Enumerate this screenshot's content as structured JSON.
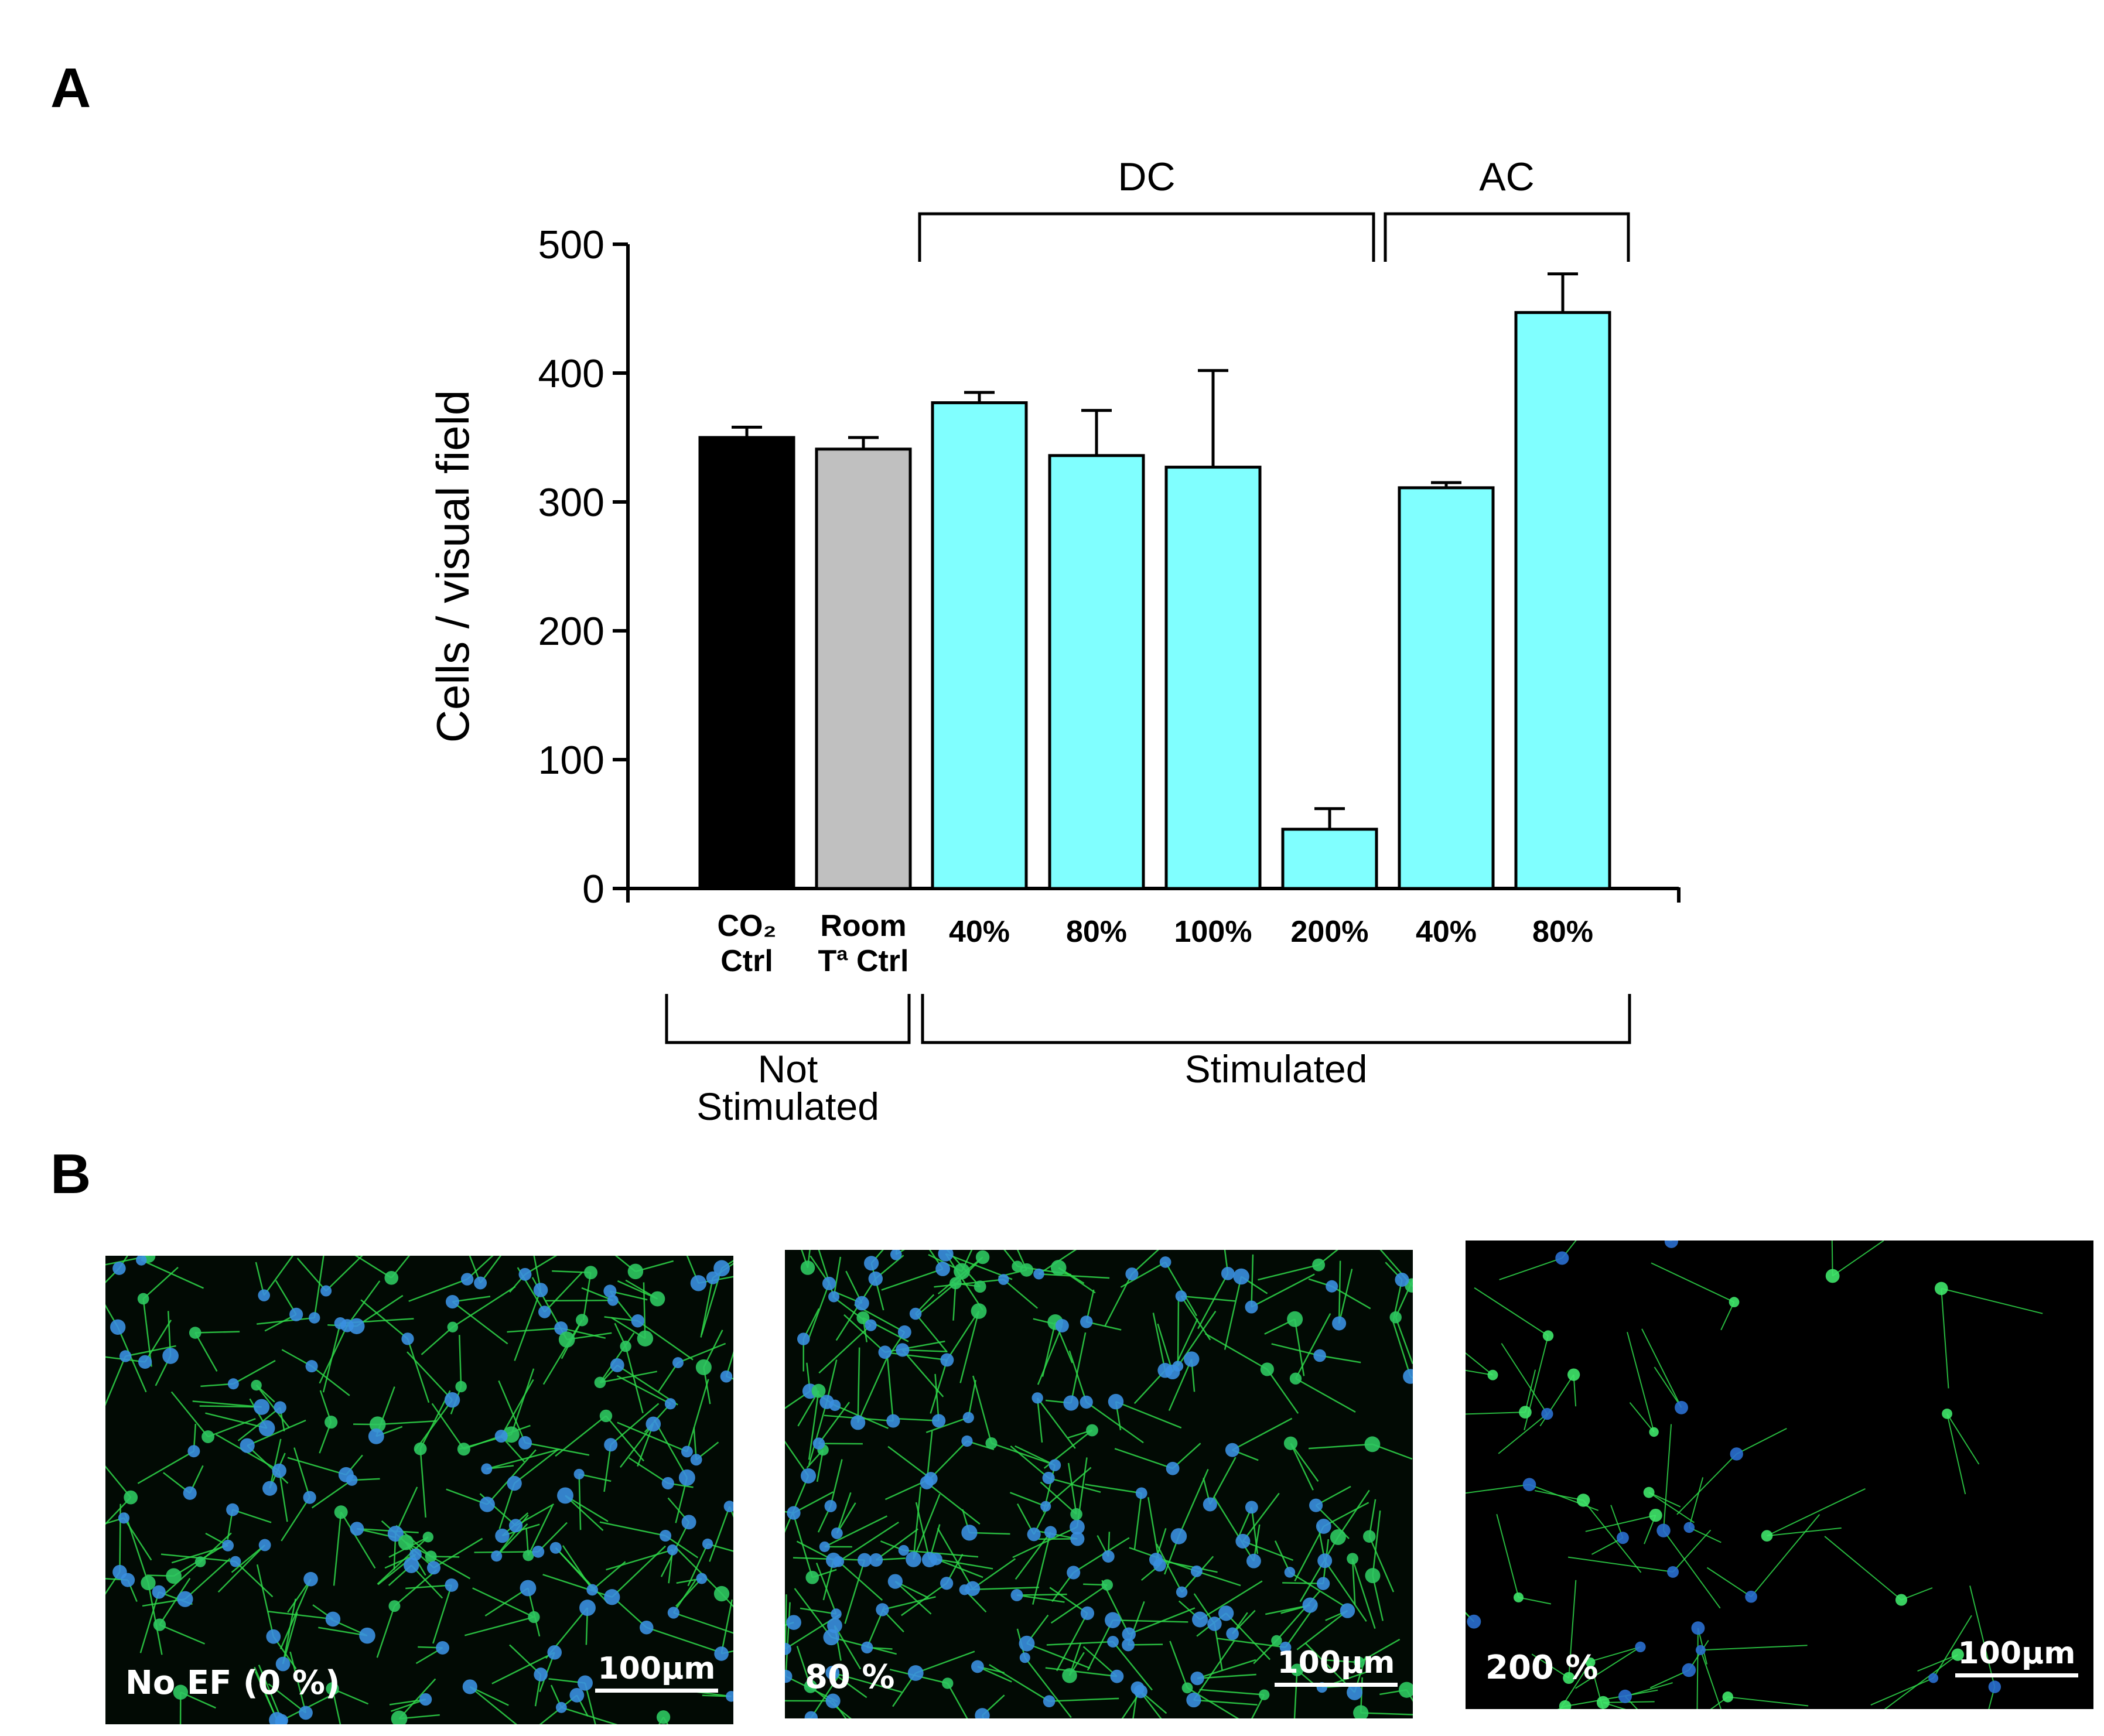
{
  "panel_a_letter": "A",
  "panel_b_letter": "B",
  "chart_data": {
    "type": "bar",
    "ylabel": "Cells / visual field",
    "xlabel": "",
    "ylim": [
      0,
      500
    ],
    "yticks": [
      0,
      100,
      200,
      300,
      400,
      500
    ],
    "grid": false,
    "bars": [
      {
        "label_lines": [
          "CO₂",
          "Ctrl"
        ],
        "value": 350,
        "error": 8,
        "color": "#000000"
      },
      {
        "label_lines": [
          "Room",
          "Tª Ctrl"
        ],
        "value": 341,
        "error": 9,
        "color": "#c0c0c0"
      },
      {
        "label_lines": [
          "40%"
        ],
        "value": 377,
        "error": 8,
        "color": "#80ffff"
      },
      {
        "label_lines": [
          "80%"
        ],
        "value": 336,
        "error": 35,
        "color": "#80ffff"
      },
      {
        "label_lines": [
          "100%"
        ],
        "value": 327,
        "error": 75,
        "color": "#80ffff"
      },
      {
        "label_lines": [
          "200%"
        ],
        "value": 46,
        "error": 16,
        "color": "#80ffff"
      },
      {
        "label_lines": [
          "40%"
        ],
        "value": 311,
        "error": 4,
        "color": "#80ffff"
      },
      {
        "label_lines": [
          "80%"
        ],
        "value": 447,
        "error": 30,
        "color": "#80ffff"
      }
    ],
    "top_brackets": [
      {
        "label": "DC",
        "from": 2,
        "to": 5
      },
      {
        "label": "AC",
        "from": 6,
        "to": 7
      }
    ],
    "bottom_brackets": [
      {
        "label_lines": [
          "Not",
          "Stimulated"
        ],
        "from": 0,
        "to": 1
      },
      {
        "label_lines": [
          "Stimulated"
        ],
        "from": 2,
        "to": 7
      }
    ]
  },
  "micrographs": [
    {
      "label": "No EF (0 %)",
      "scale": "100µm",
      "density": "high"
    },
    {
      "label": "80 %",
      "scale": "100µm",
      "density": "high"
    },
    {
      "label": "200 %",
      "scale": "100µm",
      "density": "low"
    }
  ]
}
